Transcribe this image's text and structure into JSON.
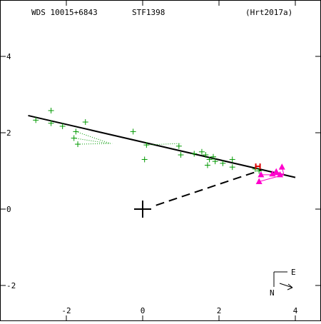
{
  "header": {
    "star_id": "WDS 10015+6843",
    "discoverer": "STF1398",
    "orbit_ref": "(Hrt2017a)"
  },
  "compass": {
    "east_label": "E",
    "north_label": "N"
  },
  "chart_data": {
    "type": "scatter",
    "title": "",
    "xlabel": "",
    "ylabel": "",
    "xlim": [
      -3.7,
      4.6
    ],
    "ylim": [
      -2.9,
      5.4
    ],
    "x_ticks": [
      -2,
      0,
      2,
      4
    ],
    "y_ticks": [
      -2,
      0,
      2,
      4
    ],
    "x_tick_labels": [
      "-2",
      "0",
      "2",
      "4"
    ],
    "y_tick_labels": [
      "-2",
      "0",
      "2",
      "4"
    ],
    "grid": false,
    "primary_star": {
      "x": 0,
      "y": 0
    },
    "orbit_line": {
      "color": "#000000",
      "points": [
        [
          -3.0,
          2.45
        ],
        [
          4.0,
          0.83
        ]
      ]
    },
    "periastron_line": {
      "color": "#000000",
      "style": "dashed",
      "points": [
        [
          0.35,
          0.1
        ],
        [
          3.1,
          1.02
        ]
      ]
    },
    "series": [
      {
        "marker": "plus",
        "color": "#009900",
        "values": [
          [
            -2.8,
            2.33
          ],
          [
            -2.4,
            2.58
          ],
          [
            -2.4,
            2.25
          ],
          [
            -2.1,
            2.17
          ],
          [
            -1.75,
            2.03
          ],
          [
            -1.8,
            1.86
          ],
          [
            -1.7,
            1.7
          ],
          [
            -1.5,
            2.28
          ],
          [
            -0.25,
            2.03
          ],
          [
            0.1,
            1.68
          ],
          [
            0.05,
            1.3
          ],
          [
            0.95,
            1.65
          ],
          [
            1.0,
            1.42
          ],
          [
            1.35,
            1.45
          ],
          [
            1.55,
            1.5
          ],
          [
            1.65,
            1.42
          ],
          [
            1.75,
            1.3
          ],
          [
            1.7,
            1.15
          ],
          [
            1.85,
            1.37
          ],
          [
            1.9,
            1.25
          ],
          [
            2.1,
            1.2
          ],
          [
            2.35,
            1.3
          ],
          [
            2.35,
            1.1
          ],
          [
            2.95,
            1.05
          ],
          [
            3.05,
            1.0
          ]
        ]
      },
      {
        "marker": "triangle",
        "color": "#ff00cc",
        "values": [
          [
            3.05,
            0.72
          ],
          [
            3.1,
            0.9
          ],
          [
            3.4,
            0.92
          ],
          [
            3.5,
            0.98
          ],
          [
            3.65,
            1.1
          ],
          [
            3.6,
            0.9
          ]
        ]
      },
      {
        "marker": "H",
        "color": "#dd0000",
        "values": [
          [
            3.02,
            1.12
          ]
        ]
      }
    ],
    "residual_color_green": "#009900",
    "residual_color_pink": "#ff00cc"
  }
}
